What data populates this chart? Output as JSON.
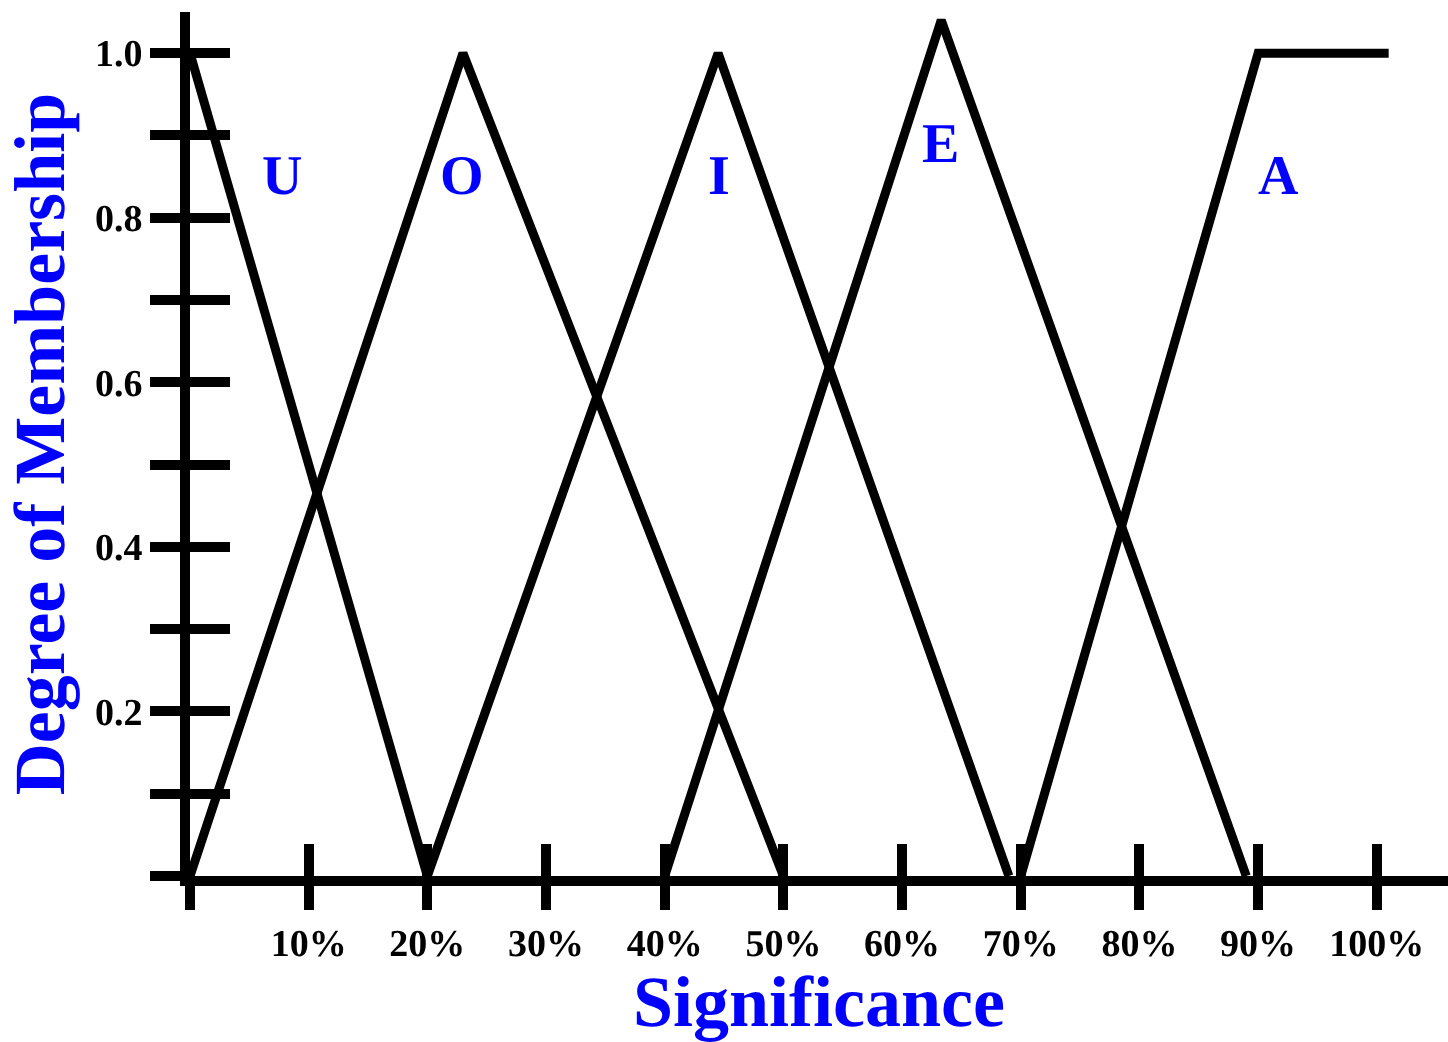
{
  "chart_data": {
    "type": "line",
    "xlabel": "Significance",
    "ylabel": "Degree of Membership",
    "xlim": [
      0,
      106
    ],
    "ylim": [
      0,
      1.05
    ],
    "xticks": [
      {
        "value": 0,
        "label": null
      },
      {
        "value": 10,
        "label": "10%"
      },
      {
        "value": 20,
        "label": "20%"
      },
      {
        "value": 30,
        "label": "30%"
      },
      {
        "value": 40,
        "label": "40%"
      },
      {
        "value": 50,
        "label": "50%"
      },
      {
        "value": 60,
        "label": "60%"
      },
      {
        "value": 70,
        "label": "70%"
      },
      {
        "value": 80,
        "label": "80%"
      },
      {
        "value": 90,
        "label": "90%"
      },
      {
        "value": 100,
        "label": "100%"
      }
    ],
    "yticks": [
      {
        "value": 0,
        "label": null
      },
      {
        "value": 0.1,
        "label": null
      },
      0.2,
      {
        "value": 0.3,
        "label": null
      },
      0.4,
      {
        "value": 0.5,
        "label": null
      },
      0.6,
      {
        "value": 0.7,
        "label": null
      },
      0.8,
      {
        "value": 0.9,
        "label": null
      },
      {
        "value": 1,
        "label": "1.0"
      }
    ],
    "series": [
      {
        "name": "U",
        "color": "#000000",
        "x": [
          0,
          20
        ],
        "values": [
          1,
          0
        ]
      },
      {
        "name": "O",
        "color": "#000000",
        "x": [
          0,
          23,
          50
        ],
        "values": [
          0,
          1,
          0
        ]
      },
      {
        "name": "I",
        "color": "#000000",
        "x": [
          20,
          44.5,
          69
        ],
        "values": [
          0,
          1,
          0
        ]
      },
      {
        "name": "E",
        "color": "#000000",
        "x": [
          40,
          63.3,
          89
        ],
        "values": [
          0,
          1.04,
          0
        ]
      },
      {
        "name": "A",
        "color": "#000000",
        "x": [
          70,
          90,
          101
        ],
        "values": [
          0,
          1,
          1
        ]
      }
    ],
    "line_style": "solid"
  }
}
